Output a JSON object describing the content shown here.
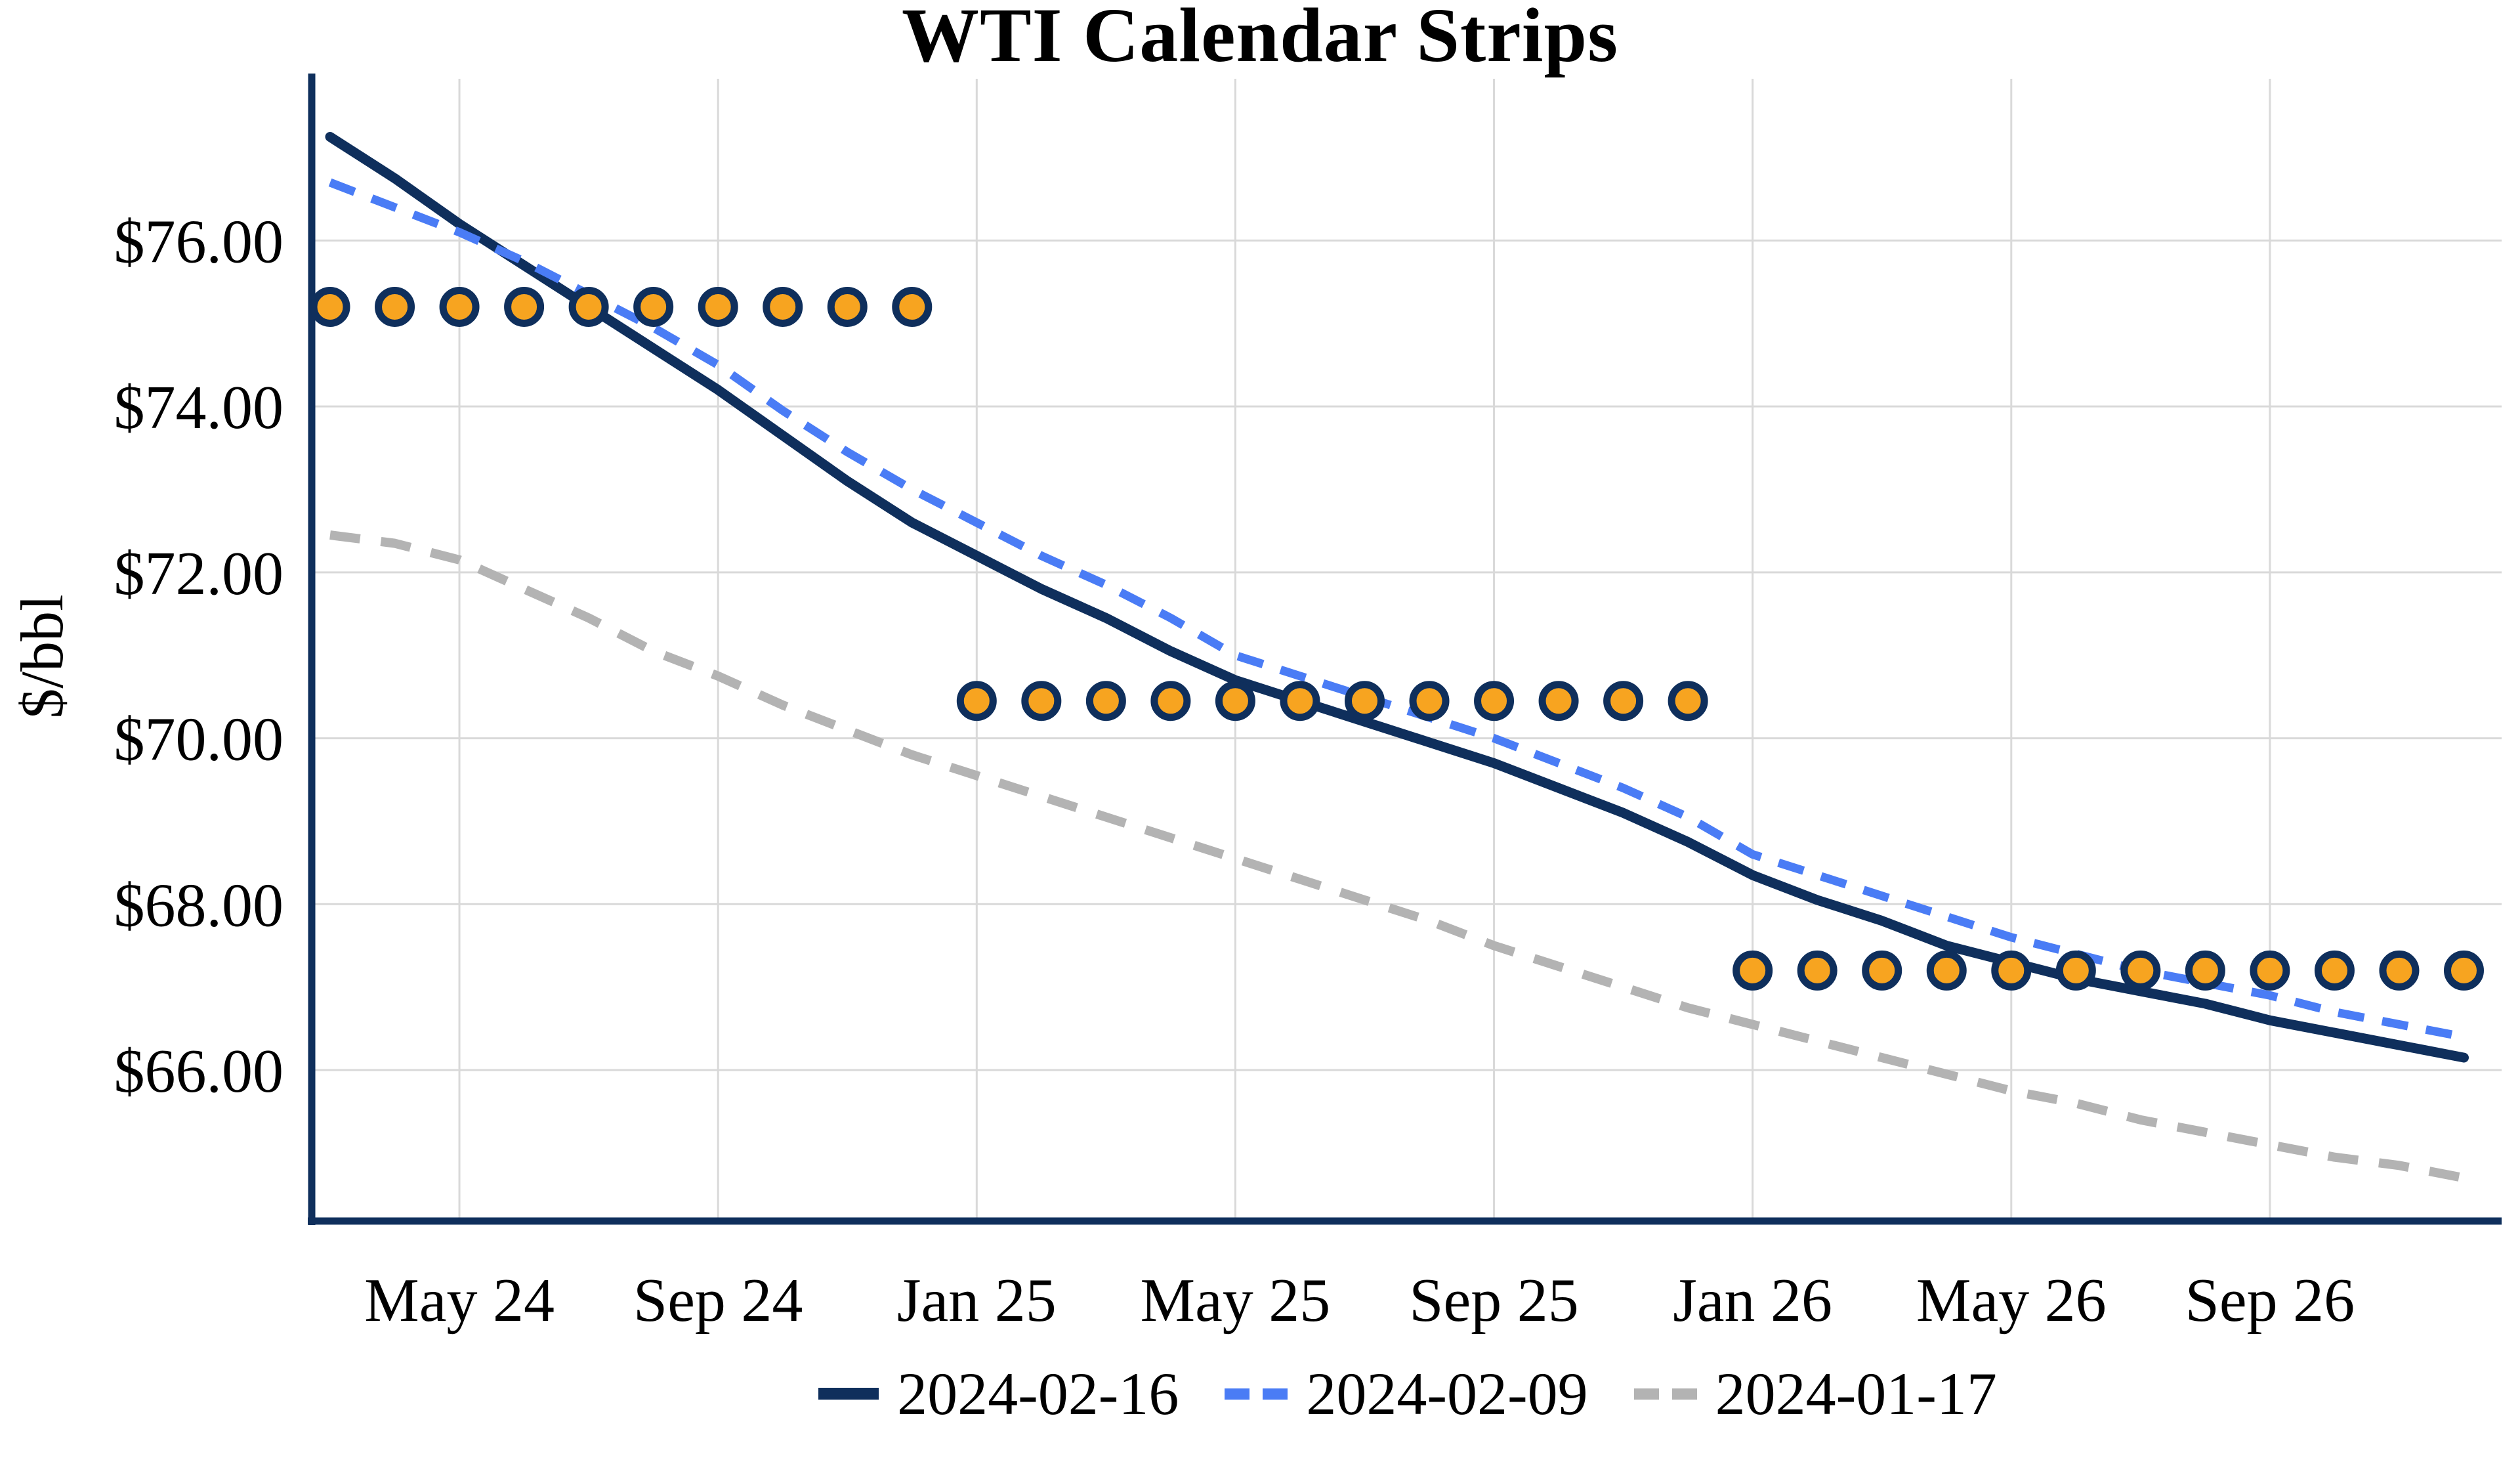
{
  "chart_data": {
    "type": "line",
    "title": "WTI Calendar Strips",
    "ylabel": "$/bbl",
    "xlabel": "",
    "grid": true,
    "legend_position": "bottom",
    "ylim": [
      64.18,
      77.95
    ],
    "x_months": [
      "Mar 24",
      "Apr 24",
      "May 24",
      "Jun 24",
      "Jul 24",
      "Aug 24",
      "Sep 24",
      "Oct 24",
      "Nov 24",
      "Dec 24",
      "Jan 25",
      "Feb 25",
      "Mar 25",
      "Apr 25",
      "May 25",
      "Jun 25",
      "Jul 25",
      "Aug 25",
      "Sep 25",
      "Oct 25",
      "Nov 25",
      "Dec 25",
      "Jan 26",
      "Feb 26",
      "Mar 26",
      "Apr 26",
      "May 26",
      "Jun 26",
      "Jul 26",
      "Aug 26",
      "Sep 26",
      "Oct 26",
      "Nov 26",
      "Dec 26"
    ],
    "x_ticks": [
      {
        "month_index": 2,
        "label": "May 24"
      },
      {
        "month_index": 6,
        "label": "Sep 24"
      },
      {
        "month_index": 10,
        "label": "Jan 25"
      },
      {
        "month_index": 14,
        "label": "May 25"
      },
      {
        "month_index": 18,
        "label": "Sep 25"
      },
      {
        "month_index": 22,
        "label": "Jan 26"
      },
      {
        "month_index": 26,
        "label": "May 26"
      },
      {
        "month_index": 30,
        "label": "Sep 26"
      }
    ],
    "y_ticks": [
      {
        "value": 66,
        "label": "$66.00"
      },
      {
        "value": 68,
        "label": "$68.00"
      },
      {
        "value": 70,
        "label": "$70.00"
      },
      {
        "value": 72,
        "label": "$72.00"
      },
      {
        "value": 74,
        "label": "$74.00"
      },
      {
        "value": 76,
        "label": "$76.00"
      }
    ],
    "series": [
      {
        "name": "2024-02-16",
        "style": "solid",
        "color": "#0F2F5C",
        "width": 15,
        "dash": "none",
        "values": [
          77.25,
          76.75,
          76.2,
          75.7,
          75.2,
          74.7,
          74.2,
          73.65,
          73.1,
          72.6,
          72.2,
          71.8,
          71.45,
          71.05,
          70.7,
          70.45,
          70.2,
          69.95,
          69.7,
          69.4,
          69.1,
          68.75,
          68.35,
          68.05,
          67.8,
          67.5,
          67.3,
          67.1,
          66.95,
          66.8,
          66.6,
          66.45,
          66.3,
          66.15
        ]
      },
      {
        "name": "2024-02-09",
        "style": "dashed",
        "color": "#4A7CF5",
        "width": 13,
        "dash": "40 28",
        "values": [
          76.7,
          76.4,
          76.1,
          75.75,
          75.35,
          74.95,
          74.5,
          73.95,
          73.45,
          73.0,
          72.6,
          72.2,
          71.85,
          71.45,
          71.0,
          70.75,
          70.5,
          70.25,
          70.0,
          69.7,
          69.4,
          69.05,
          68.6,
          68.35,
          68.1,
          67.85,
          67.6,
          67.4,
          67.2,
          67.05,
          66.9,
          66.7,
          66.55,
          66.4
        ]
      },
      {
        "name": "2024-01-17",
        "style": "dashed",
        "color": "#B3B3B3",
        "width": 14,
        "dash": "46 32",
        "values": [
          72.45,
          72.35,
          72.15,
          71.8,
          71.45,
          71.05,
          70.75,
          70.4,
          70.1,
          69.8,
          69.55,
          69.3,
          69.05,
          68.8,
          68.55,
          68.3,
          68.05,
          67.8,
          67.5,
          67.25,
          67.0,
          66.75,
          66.55,
          66.35,
          66.15,
          65.95,
          65.75,
          65.6,
          65.4,
          65.25,
          65.1,
          64.95,
          64.85,
          64.7
        ]
      }
    ],
    "strip_markers": {
      "fill": "#F7A420",
      "stroke": "#0F2F5C",
      "radius": 25,
      "stroke_width": 11,
      "groups": [
        {
          "value": 75.2,
          "from_month": "Mar 24",
          "to_month": "Dec 24",
          "from_index": 0,
          "to_index": 9
        },
        {
          "value": 70.45,
          "from_month": "Jan 25",
          "to_month": "Dec 25",
          "from_index": 10,
          "to_index": 21
        },
        {
          "value": 67.2,
          "from_month": "Jan 26",
          "to_month": "Dec 26",
          "from_index": 22,
          "to_index": 33
        }
      ]
    },
    "colors": {
      "grid": "#D9D9D9",
      "axis": "#0F2F5C",
      "text": "#000000",
      "background": "#FFFFFF"
    }
  }
}
